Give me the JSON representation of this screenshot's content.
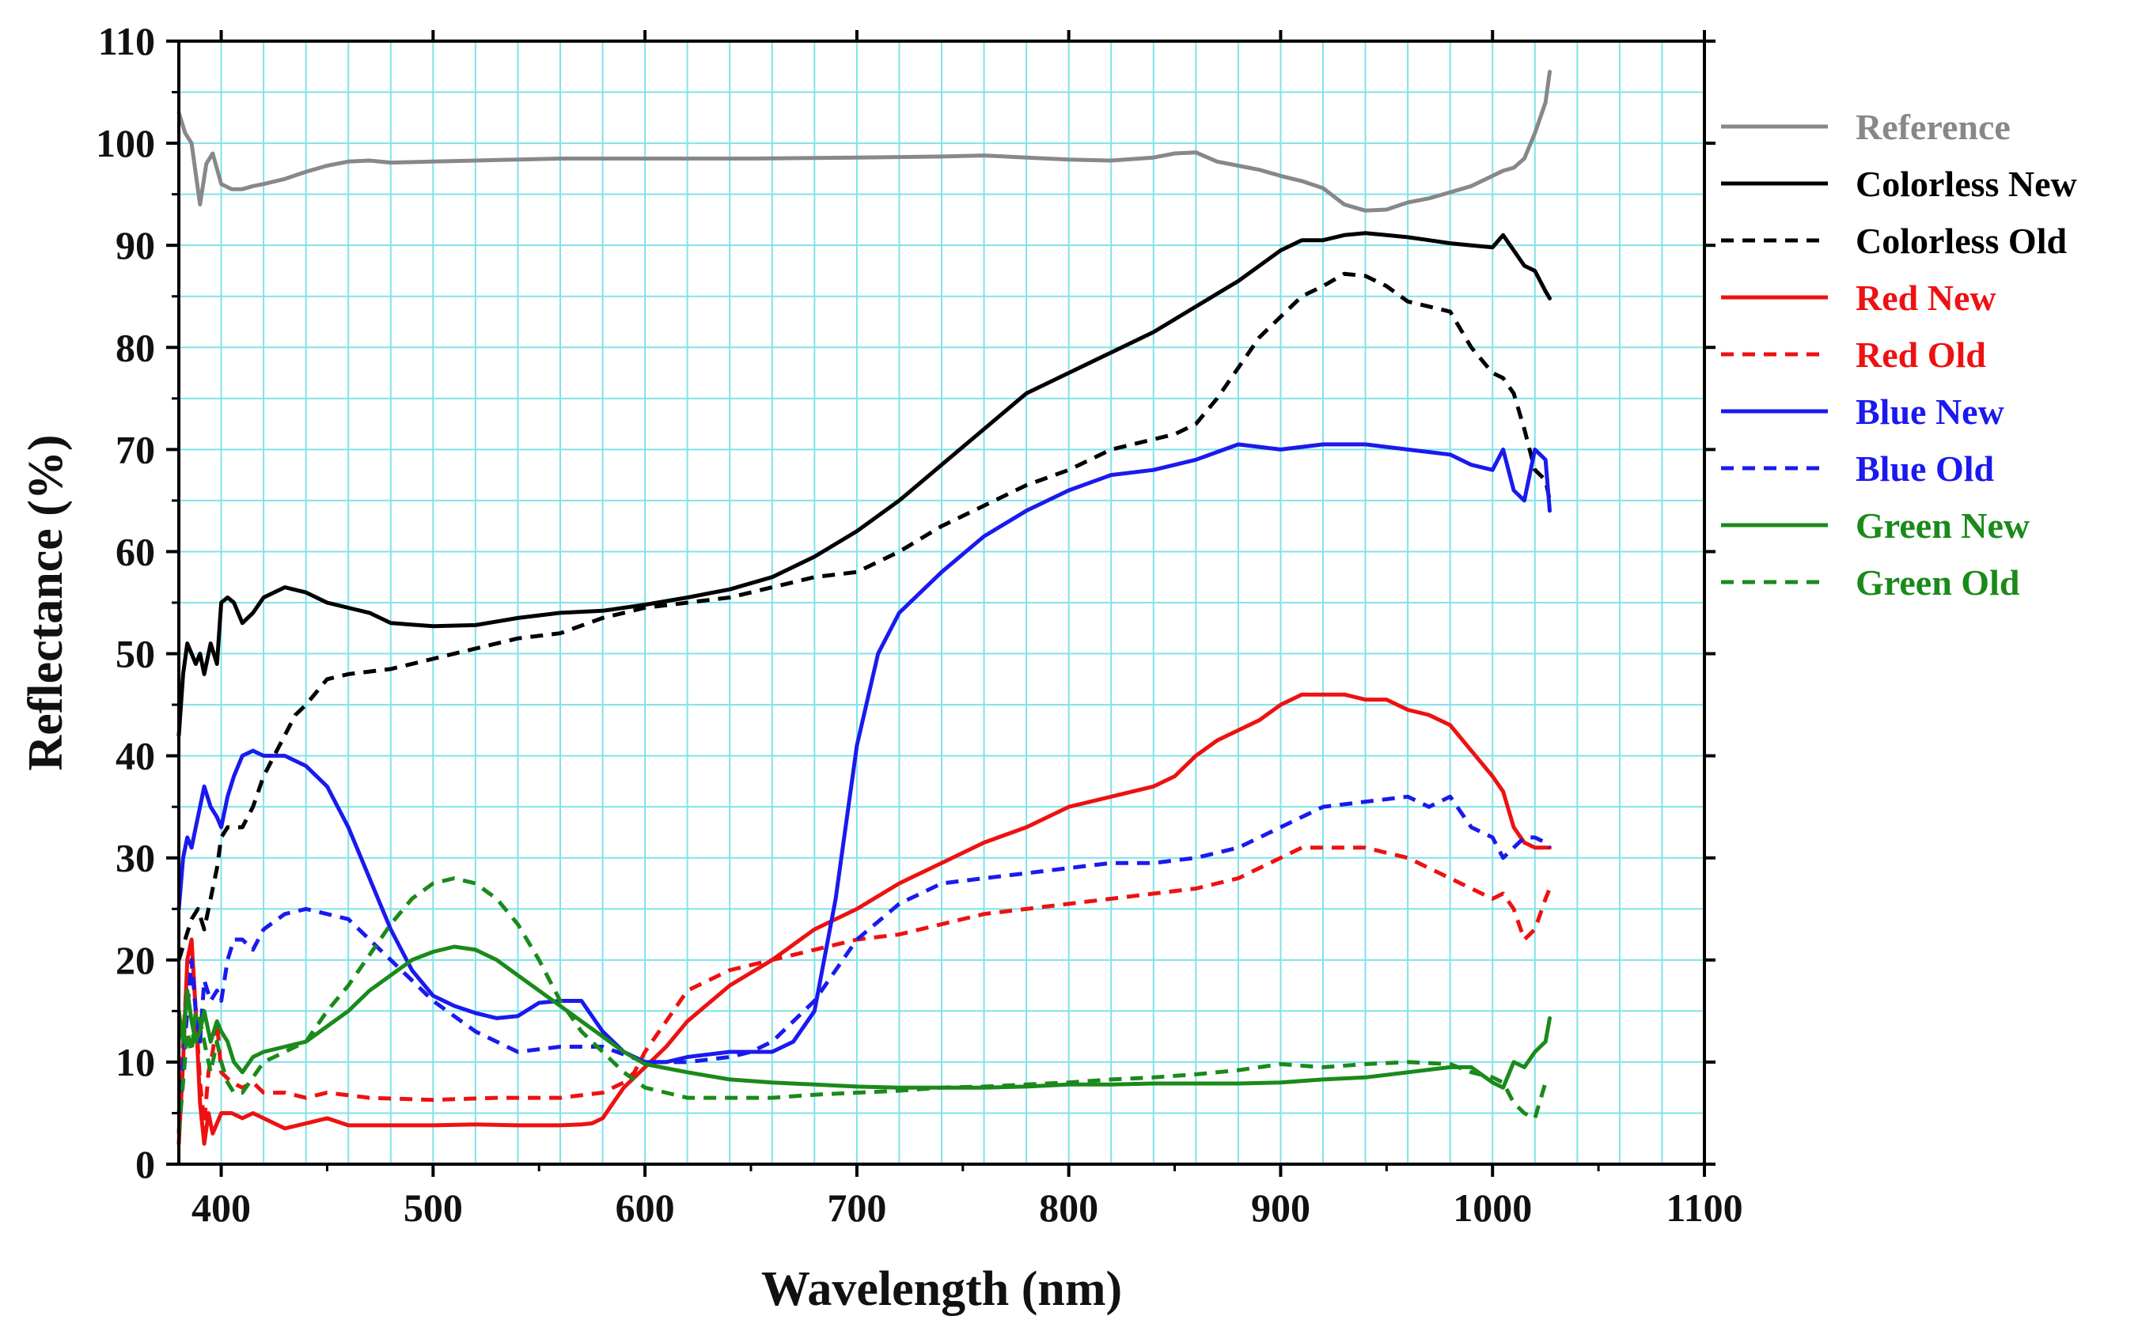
{
  "chart_data": {
    "type": "line",
    "title": "",
    "xlabel": "Wavelength (nm)",
    "ylabel": "Reflectance (%)",
    "xlim": [
      380,
      1100
    ],
    "ylim": [
      0,
      110
    ],
    "grid": true,
    "legend_position": "right",
    "x_ticks": [
      400,
      500,
      600,
      700,
      800,
      900,
      1000,
      1100
    ],
    "y_ticks": [
      0,
      10,
      20,
      30,
      40,
      50,
      60,
      70,
      80,
      90,
      100,
      110
    ],
    "series": [
      {
        "name": "Reference",
        "color": "#888888",
        "style": "solid",
        "x": [
          380,
          383,
          386,
          388,
          390,
          393,
          396,
          400,
          405,
          410,
          415,
          420,
          430,
          440,
          450,
          460,
          470,
          480,
          500,
          520,
          540,
          560,
          600,
          650,
          700,
          740,
          760,
          780,
          800,
          820,
          840,
          850,
          860,
          870,
          880,
          890,
          900,
          910,
          920,
          930,
          940,
          950,
          960,
          970,
          980,
          990,
          1000,
          1005,
          1010,
          1015,
          1020,
          1025,
          1027
        ],
        "y": [
          103,
          101,
          100,
          97,
          94,
          98,
          99,
          96,
          95.5,
          95.5,
          95.8,
          96,
          96.5,
          97.2,
          97.8,
          98.2,
          98.3,
          98.1,
          98.2,
          98.3,
          98.4,
          98.5,
          98.5,
          98.5,
          98.6,
          98.7,
          98.8,
          98.6,
          98.4,
          98.3,
          98.6,
          99,
          99.1,
          98.2,
          97.8,
          97.4,
          96.8,
          96.3,
          95.6,
          94,
          93.4,
          93.5,
          94.2,
          94.6,
          95.2,
          95.8,
          96.8,
          97.3,
          97.6,
          98.5,
          101,
          104,
          107
        ]
      },
      {
        "name": "Colorless New",
        "color": "#000000",
        "style": "solid",
        "x": [
          380,
          382,
          384,
          386,
          388,
          390,
          392,
          395,
          398,
          400,
          403,
          406,
          410,
          415,
          420,
          430,
          440,
          450,
          460,
          470,
          480,
          500,
          520,
          540,
          560,
          580,
          600,
          620,
          640,
          660,
          680,
          700,
          720,
          740,
          760,
          780,
          800,
          820,
          840,
          860,
          880,
          900,
          910,
          920,
          930,
          940,
          950,
          960,
          970,
          980,
          990,
          1000,
          1005,
          1010,
          1015,
          1020,
          1025,
          1027
        ],
        "y": [
          42,
          48,
          51,
          50,
          49,
          50,
          48,
          51,
          49,
          55,
          55.5,
          55,
          53,
          54,
          55.5,
          56.5,
          56,
          55,
          54.5,
          54,
          53,
          52.7,
          52.8,
          53.5,
          54,
          54.2,
          54.8,
          55.5,
          56.3,
          57.5,
          59.5,
          62,
          65,
          68.5,
          72,
          75.5,
          77.5,
          79.5,
          81.5,
          84,
          86.5,
          89.5,
          90.5,
          90.5,
          91,
          91.2,
          91,
          90.8,
          90.5,
          90.2,
          90,
          89.8,
          91,
          89.5,
          88,
          87.5,
          85.5,
          84.8
        ]
      },
      {
        "name": "Colorless Old",
        "color": "#000000",
        "style": "dashed",
        "x": [
          380,
          383,
          386,
          389,
          392,
          395,
          398,
          400,
          403,
          406,
          410,
          415,
          420,
          425,
          430,
          435,
          440,
          450,
          460,
          480,
          500,
          520,
          540,
          560,
          580,
          600,
          620,
          640,
          660,
          680,
          700,
          720,
          740,
          760,
          780,
          800,
          820,
          840,
          850,
          860,
          870,
          880,
          890,
          900,
          910,
          920,
          930,
          940,
          950,
          960,
          970,
          980,
          990,
          1000,
          1005,
          1010,
          1015,
          1020,
          1025,
          1027
        ],
        "y": [
          20,
          22,
          24,
          25,
          23,
          26,
          29,
          32,
          33,
          33,
          33,
          35,
          38,
          40,
          42,
          44,
          45,
          47.5,
          48,
          48.5,
          49.5,
          50.5,
          51.5,
          52,
          53.5,
          54.5,
          55,
          55.5,
          56.5,
          57.5,
          58,
          60,
          62.5,
          64.5,
          66.5,
          68,
          70,
          71,
          71.5,
          72.5,
          75,
          78,
          81,
          83,
          85,
          86,
          87.2,
          87,
          86,
          84.5,
          84,
          83.5,
          80,
          77.5,
          77,
          75.5,
          72,
          68,
          67,
          65
        ]
      },
      {
        "name": "Red New",
        "color": "#ee1111",
        "style": "solid",
        "x": [
          380,
          382,
          384,
          386,
          388,
          390,
          392,
          394,
          396,
          398,
          400,
          405,
          410,
          415,
          420,
          425,
          430,
          440,
          450,
          460,
          480,
          500,
          520,
          540,
          560,
          570,
          575,
          580,
          585,
          590,
          595,
          600,
          610,
          620,
          640,
          660,
          680,
          700,
          720,
          740,
          760,
          780,
          800,
          820,
          840,
          850,
          860,
          870,
          880,
          890,
          900,
          910,
          920,
          930,
          940,
          950,
          960,
          970,
          980,
          990,
          1000,
          1005,
          1010,
          1015,
          1020,
          1025,
          1027
        ],
        "y": [
          2,
          10,
          20,
          22,
          15,
          6,
          2,
          5,
          3,
          4,
          5,
          5,
          4.5,
          5,
          4.5,
          4,
          3.5,
          4,
          4.5,
          3.8,
          3.8,
          3.8,
          3.9,
          3.8,
          3.8,
          3.9,
          4,
          4.5,
          6,
          7.5,
          8.5,
          9.5,
          11.5,
          14,
          17.5,
          20,
          23,
          25,
          27.5,
          29.5,
          31.5,
          33,
          35,
          36,
          37,
          38,
          40,
          41.5,
          42.5,
          43.5,
          45,
          46,
          46,
          46,
          45.5,
          45.5,
          44.5,
          44,
          43,
          40.5,
          38,
          36.5,
          33,
          31.5,
          31,
          31,
          31
        ]
      },
      {
        "name": "Red Old",
        "color": "#ee1111",
        "style": "dashed",
        "x": [
          380,
          382,
          384,
          386,
          388,
          390,
          392,
          394,
          396,
          398,
          400,
          405,
          410,
          415,
          420,
          430,
          440,
          450,
          470,
          500,
          530,
          560,
          580,
          590,
          595,
          600,
          610,
          620,
          640,
          660,
          680,
          700,
          720,
          740,
          760,
          780,
          800,
          820,
          840,
          860,
          880,
          900,
          910,
          920,
          930,
          940,
          950,
          960,
          970,
          980,
          990,
          1000,
          1005,
          1010,
          1015,
          1020,
          1025,
          1027
        ],
        "y": [
          3,
          12,
          19,
          20,
          15,
          8,
          4,
          9,
          11,
          14,
          9,
          8,
          7.5,
          8,
          7,
          7,
          6.5,
          7,
          6.5,
          6.3,
          6.5,
          6.5,
          7,
          8,
          9,
          11,
          14,
          17,
          19,
          20,
          21,
          22,
          22.5,
          23.5,
          24.5,
          25,
          25.5,
          26,
          26.5,
          27,
          28,
          30,
          31,
          31,
          31,
          31,
          30.5,
          30,
          29,
          28,
          27,
          26,
          26.5,
          25,
          22,
          23,
          26,
          27
        ]
      },
      {
        "name": "Blue New",
        "color": "#1a1aee",
        "style": "solid",
        "x": [
          380,
          382,
          384,
          386,
          388,
          390,
          392,
          395,
          398,
          400,
          403,
          406,
          410,
          415,
          420,
          430,
          440,
          450,
          460,
          470,
          480,
          490,
          500,
          510,
          520,
          530,
          540,
          550,
          560,
          570,
          580,
          590,
          600,
          610,
          620,
          640,
          660,
          670,
          680,
          690,
          700,
          710,
          720,
          740,
          760,
          780,
          800,
          820,
          840,
          860,
          880,
          900,
          920,
          940,
          960,
          980,
          990,
          1000,
          1005,
          1010,
          1015,
          1020,
          1025,
          1027
        ],
        "y": [
          25,
          30,
          32,
          31,
          33,
          35,
          37,
          35,
          34,
          33,
          36,
          38,
          40,
          40.5,
          40,
          40,
          39,
          37,
          33,
          28,
          23,
          19,
          16.5,
          15.5,
          14.8,
          14.3,
          14.5,
          15.8,
          16,
          16,
          13,
          11,
          10,
          10,
          10.5,
          11,
          11,
          12,
          15,
          26,
          41,
          50,
          54,
          58,
          61.5,
          64,
          66,
          67.5,
          68,
          69,
          70.5,
          70,
          70.5,
          70.5,
          70,
          69.5,
          68.5,
          68,
          70,
          66,
          65,
          70,
          69,
          64
        ]
      },
      {
        "name": "Blue Old",
        "color": "#1a1aee",
        "style": "dashed",
        "x": [
          380,
          382,
          384,
          386,
          388,
          390,
          392,
          395,
          398,
          400,
          403,
          406,
          410,
          415,
          420,
          430,
          440,
          450,
          460,
          470,
          480,
          490,
          500,
          520,
          540,
          560,
          580,
          600,
          620,
          640,
          650,
          660,
          670,
          680,
          690,
          700,
          720,
          740,
          760,
          780,
          800,
          820,
          840,
          860,
          880,
          900,
          920,
          940,
          960,
          970,
          980,
          990,
          1000,
          1005,
          1010,
          1015,
          1020,
          1025,
          1027
        ],
        "y": [
          5,
          10,
          15,
          20,
          15,
          12,
          18,
          16,
          17,
          16,
          20,
          22,
          22,
          21,
          23,
          24.5,
          25,
          24.5,
          24,
          22,
          20,
          18,
          16,
          13,
          11,
          11.5,
          11.5,
          10,
          10,
          10.5,
          11,
          12,
          14,
          16,
          19,
          22,
          25.5,
          27.5,
          28,
          28.5,
          29,
          29.5,
          29.5,
          30,
          31,
          33,
          35,
          35.5,
          36,
          35,
          36,
          33,
          32,
          30,
          31,
          32,
          32,
          31.5,
          31
        ]
      },
      {
        "name": "Green New",
        "color": "#1a8a1a",
        "style": "solid",
        "x": [
          380,
          382,
          384,
          386,
          388,
          390,
          392,
          395,
          398,
          400,
          403,
          406,
          410,
          415,
          420,
          430,
          440,
          450,
          460,
          470,
          480,
          490,
          500,
          510,
          520,
          530,
          540,
          550,
          560,
          570,
          580,
          590,
          600,
          620,
          640,
          660,
          680,
          700,
          720,
          740,
          760,
          780,
          800,
          820,
          840,
          860,
          880,
          900,
          920,
          940,
          960,
          980,
          990,
          1000,
          1005,
          1010,
          1015,
          1020,
          1025,
          1027
        ],
        "y": [
          15,
          12,
          17,
          14,
          12,
          13,
          15,
          12,
          14,
          13,
          12,
          10,
          9,
          10.5,
          11,
          11.5,
          12,
          13.5,
          15,
          17,
          18.5,
          20,
          20.8,
          21.3,
          21,
          20,
          18.5,
          17,
          15.5,
          14,
          12.5,
          11,
          9.8,
          9,
          8.3,
          8,
          7.8,
          7.6,
          7.5,
          7.5,
          7.5,
          7.6,
          7.8,
          7.8,
          7.9,
          7.9,
          7.9,
          8,
          8.3,
          8.5,
          9,
          9.5,
          9.5,
          8,
          7.5,
          10,
          9.5,
          11,
          12,
          14.3
        ]
      },
      {
        "name": "Green Old",
        "color": "#1a8a1a",
        "style": "dashed",
        "x": [
          380,
          382,
          384,
          386,
          388,
          390,
          392,
          395,
          398,
          400,
          403,
          406,
          410,
          415,
          420,
          430,
          440,
          450,
          460,
          470,
          480,
          490,
          500,
          510,
          520,
          530,
          540,
          550,
          560,
          570,
          580,
          590,
          600,
          620,
          640,
          660,
          680,
          700,
          720,
          740,
          760,
          780,
          800,
          820,
          840,
          860,
          880,
          900,
          920,
          940,
          960,
          980,
          990,
          1000,
          1005,
          1010,
          1015,
          1020,
          1025,
          1027
        ],
        "y": [
          3,
          8,
          13,
          11,
          15,
          14,
          12,
          9,
          12,
          10,
          8,
          7,
          7,
          8.5,
          10,
          11,
          12,
          15,
          17.5,
          20.5,
          23.5,
          26,
          27.5,
          28,
          27.5,
          26,
          23.5,
          20,
          16,
          13,
          11,
          9,
          7.5,
          6.5,
          6.5,
          6.5,
          6.8,
          7,
          7.2,
          7.5,
          7.6,
          7.8,
          8,
          8.3,
          8.5,
          8.8,
          9.2,
          9.8,
          9.5,
          9.8,
          10,
          9.8,
          9,
          8.5,
          8,
          6,
          5,
          4.5,
          8,
          8
        ]
      }
    ]
  }
}
